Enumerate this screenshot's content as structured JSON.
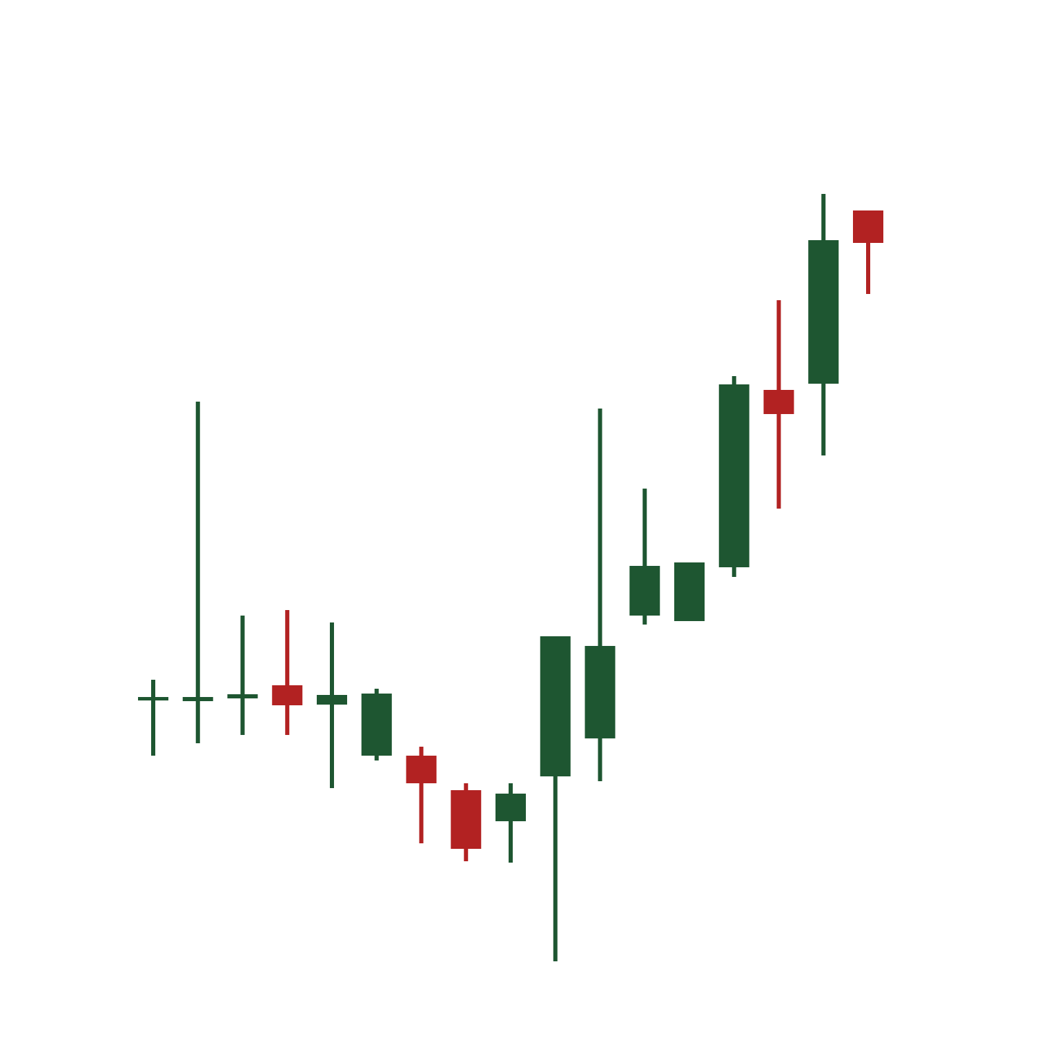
{
  "chart_data": {
    "type": "candlestick",
    "categories": [
      null,
      null,
      null,
      null,
      null,
      null,
      null,
      null,
      null,
      null,
      null,
      null,
      null,
      null,
      null,
      null,
      null
    ],
    "open": [
      52.2,
      52.0,
      52.4,
      54.3,
      51.5,
      44.1,
      44.1,
      39.1,
      34.6,
      41.1,
      46.6,
      64.4,
      63.6,
      71.4,
      97.1,
      98.0,
      123.1
    ],
    "high": [
      55.1,
      95.4,
      64.4,
      65.2,
      63.4,
      53.8,
      45.4,
      40.1,
      40.1,
      61.4,
      94.4,
      82.8,
      72.1,
      99.1,
      110.1,
      125.5,
      123.1
    ],
    "low": [
      44.1,
      45.9,
      47.1,
      47.1,
      39.4,
      43.4,
      31.4,
      28.8,
      28.6,
      14.3,
      40.4,
      63.1,
      63.6,
      70.0,
      79.9,
      87.6,
      111.0
    ],
    "close": [
      52.6,
      52.6,
      53.0,
      51.4,
      52.9,
      53.1,
      40.1,
      30.6,
      38.6,
      61.4,
      60.0,
      71.6,
      72.1,
      97.9,
      93.6,
      118.8,
      118.4
    ],
    "up_color": "#1e5631",
    "down_color": "#b22222",
    "ylim": [
      0,
      153.6
    ]
  }
}
